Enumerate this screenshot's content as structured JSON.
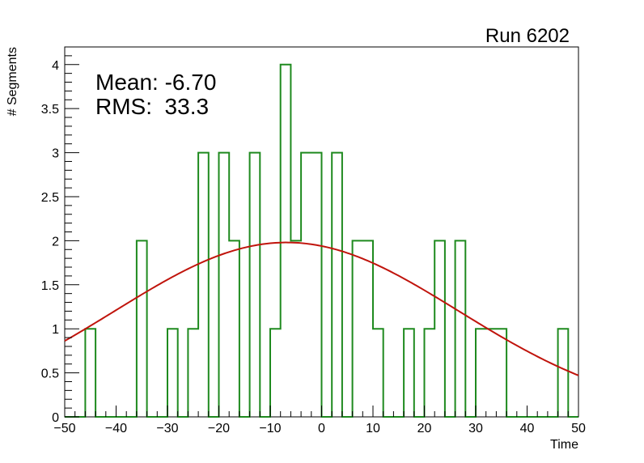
{
  "chart_data": {
    "type": "histogram",
    "title": "Run 6202",
    "xlabel": "Time",
    "ylabel": "# Segments",
    "xlim": [
      -50,
      50
    ],
    "ylim": [
      0,
      4.2
    ],
    "bin_width": 2,
    "bin_edges_start": -50,
    "counts": [
      0,
      0,
      1,
      0,
      0,
      0,
      0,
      2,
      0,
      0,
      1,
      0,
      1,
      3,
      0,
      3,
      2,
      0,
      3,
      0,
      1,
      4,
      2,
      3,
      3,
      0,
      3,
      0,
      2,
      2,
      1,
      0,
      0,
      1,
      0,
      1,
      2,
      0,
      2,
      0,
      1,
      1,
      1,
      0,
      0,
      0,
      0,
      0,
      1,
      0
    ],
    "x_ticks": [
      -50,
      -40,
      -30,
      -20,
      -10,
      0,
      10,
      20,
      30,
      40,
      50
    ],
    "x_tick_labels": [
      "−50",
      "−40",
      "−30",
      "−20",
      "−10",
      "0",
      "10",
      "20",
      "30",
      "40",
      "50"
    ],
    "y_ticks": [
      0,
      0.5,
      1,
      1.5,
      2,
      2.5,
      3,
      3.5,
      4
    ],
    "y_tick_labels": [
      "0",
      "0.5",
      "1",
      "1.5",
      "2",
      "2.5",
      "3",
      "3.5",
      "4"
    ],
    "grid": false,
    "histogram_color": "#1f8a1f",
    "fit": {
      "type": "gaussian",
      "amplitude": 1.98,
      "mean": -6.8,
      "sigma": 33.5,
      "color": "#c0140c"
    },
    "stats": {
      "mean_label": "Mean: -6.70",
      "rms_label": "RMS:  33.3"
    }
  }
}
